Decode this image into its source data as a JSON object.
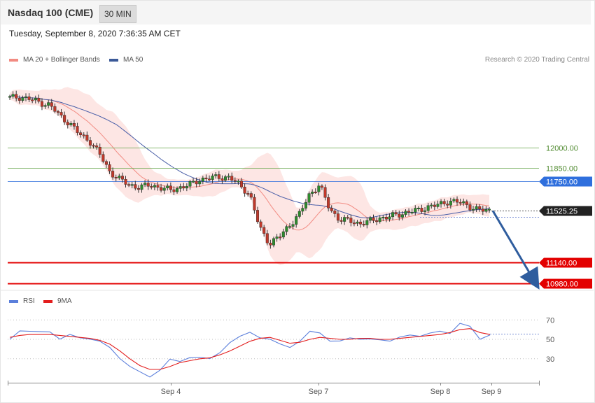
{
  "header": {
    "instrument": "Nasdaq 100 (CME)",
    "timeframe": "30 MIN",
    "timestamp": "Tuesday, September 8, 2020 7:36:35 AM CET"
  },
  "legend": {
    "main": [
      {
        "label": "MA 20 + Bollinger Bands",
        "color": "#f28b82"
      },
      {
        "label": "MA 50",
        "color": "#3b5998"
      }
    ],
    "osc": [
      {
        "label": "RSI",
        "color": "#5b7fdb"
      },
      {
        "label": "9MA",
        "color": "#e31d1d"
      }
    ]
  },
  "copyright": "Research © 2020 Trading Central",
  "chart_data": [
    {
      "type": "candlestick",
      "title": "Nasdaq 100 (CME)",
      "levels": [
        {
          "value": 12000.0,
          "label": "12000.00",
          "kind": "resistance",
          "color": "#6aa84f"
        },
        {
          "value": 11850.0,
          "label": "11850.00",
          "kind": "resistance",
          "color": "#6aa84f"
        },
        {
          "value": 11750.0,
          "label": "11750.00",
          "kind": "pivot",
          "color": "#2f6fdd"
        },
        {
          "value": 11525.25,
          "label": "11525.25",
          "kind": "last",
          "color": "#222222"
        },
        {
          "value": 11140.0,
          "label": "11140.00",
          "kind": "support",
          "color": "#e30000"
        },
        {
          "value": 10980.0,
          "label": "10980.00",
          "kind": "support",
          "color": "#e30000"
        }
      ],
      "close_path": [
        12375,
        12380,
        12365,
        12340,
        12320,
        12240,
        12180,
        12100,
        12050,
        11950,
        11820,
        11760,
        11720,
        11700,
        11720,
        11700,
        11680,
        11700,
        11720,
        11760,
        11770,
        11780,
        11775,
        11720,
        11650,
        11400,
        11280,
        11330,
        11420,
        11500,
        11650,
        11720,
        11540,
        11460,
        11450,
        11430,
        11445,
        11470,
        11480,
        11500,
        11520,
        11530,
        11560,
        11570,
        11600,
        11590,
        11560,
        11530,
        11527
      ],
      "forecast": {
        "from": 11525.25,
        "to": 10980.0
      },
      "x_ticks": [
        "Sep 4",
        "Sep 7",
        "Sep 8",
        "Sep 9"
      ]
    },
    {
      "type": "line",
      "title": "RSI",
      "ylim": [
        10,
        80
      ],
      "y_ticks": [
        70,
        50,
        30
      ],
      "series": [
        {
          "name": "RSI",
          "values": [
            50,
            57,
            60,
            58,
            56,
            52,
            55,
            50,
            52,
            48,
            40,
            32,
            22,
            15,
            13,
            18,
            28,
            29,
            31,
            30,
            32,
            36,
            45,
            55,
            57,
            50,
            52,
            45,
            40,
            50,
            58,
            55,
            50,
            48,
            50,
            52,
            50,
            48,
            50,
            52,
            53,
            55,
            56,
            57,
            58,
            66,
            62,
            52,
            54
          ]
        },
        {
          "name": "9MA",
          "values": [
            52,
            54,
            55,
            55,
            55,
            54,
            53,
            52,
            51,
            49,
            45,
            38,
            30,
            23,
            19,
            19,
            22,
            26,
            28,
            30,
            31,
            34,
            38,
            43,
            48,
            51,
            52,
            49,
            46,
            47,
            50,
            52,
            51,
            50,
            50,
            51,
            51,
            50,
            50,
            51,
            52,
            53,
            54,
            55,
            57,
            60,
            61,
            57,
            55
          ]
        }
      ]
    }
  ]
}
